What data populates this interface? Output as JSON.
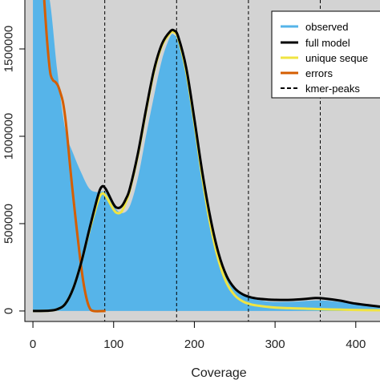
{
  "chart_data": {
    "type": "area",
    "title": "",
    "xlabel": "Coverage",
    "ylabel": "",
    "xlim": [
      -10,
      430
    ],
    "ylim": [
      -60000,
      1780000
    ],
    "x_ticks": [
      0,
      100,
      200,
      300,
      400
    ],
    "x_tick_labels": [
      "0",
      "100",
      "200",
      "300",
      "400"
    ],
    "y_ticks": [
      0,
      500000,
      1000000,
      1500000
    ],
    "y_tick_labels": [
      "0",
      "500000",
      "1000000",
      "1500000"
    ],
    "grid": false,
    "background_color": "#d3d3d3",
    "kmer_peaks": [
      89,
      178,
      267,
      356
    ],
    "legend": {
      "position": "top-right",
      "entries": [
        {
          "label": "observed",
          "color": "#56b4e9",
          "style": "area"
        },
        {
          "label": "full model",
          "color": "#000000",
          "style": "line"
        },
        {
          "label": "unique seque",
          "color": "#f0e442",
          "style": "line"
        },
        {
          "label": "errors",
          "color": "#d55e00",
          "style": "line"
        },
        {
          "label": "kmer-peaks",
          "color": "#000000",
          "style": "dashed"
        }
      ]
    },
    "series": [
      {
        "name": "observed",
        "color": "#56b4e9",
        "style": "area",
        "x": [
          0,
          10,
          20,
          30,
          40,
          50,
          60,
          70,
          80,
          90,
          100,
          110,
          120,
          130,
          140,
          150,
          160,
          170,
          175,
          180,
          190,
          200,
          210,
          220,
          230,
          240,
          250,
          260,
          270,
          280,
          290,
          300,
          320,
          340,
          360,
          380,
          400,
          430
        ],
        "values": [
          1800000,
          1800000,
          1800000,
          1380000,
          1040000,
          900000,
          790000,
          700000,
          680000,
          680000,
          600000,
          560000,
          600000,
          760000,
          1000000,
          1230000,
          1440000,
          1570000,
          1580000,
          1540000,
          1360000,
          1080000,
          780000,
          520000,
          330000,
          200000,
          130000,
          95000,
          75000,
          62000,
          55000,
          52000,
          53000,
          58000,
          60000,
          52000,
          40000,
          32000
        ]
      },
      {
        "name": "full model",
        "color": "#000000",
        "style": "line",
        "x": [
          0,
          20,
          30,
          40,
          50,
          60,
          70,
          80,
          85,
          90,
          100,
          105,
          110,
          115,
          120,
          130,
          140,
          150,
          160,
          170,
          175,
          180,
          190,
          200,
          210,
          220,
          230,
          240,
          250,
          260,
          270,
          280,
          290,
          300,
          320,
          340,
          350,
          360,
          380,
          400,
          430
        ],
        "values": [
          0,
          2000,
          10000,
          40000,
          130000,
          280000,
          470000,
          650000,
          710000,
          700000,
          610000,
          590000,
          600000,
          640000,
          700000,
          900000,
          1150000,
          1380000,
          1530000,
          1600000,
          1605000,
          1570000,
          1390000,
          1100000,
          790000,
          530000,
          330000,
          200000,
          130000,
          95000,
          78000,
          70000,
          66000,
          64000,
          64000,
          70000,
          74000,
          72000,
          60000,
          42000,
          25000
        ]
      },
      {
        "name": "unique sequence",
        "color": "#f0e442",
        "style": "line",
        "x": [
          0,
          20,
          30,
          40,
          50,
          60,
          70,
          80,
          85,
          90,
          100,
          105,
          110,
          115,
          120,
          130,
          140,
          150,
          160,
          170,
          175,
          180,
          190,
          200,
          210,
          220,
          230,
          240,
          250,
          260,
          270,
          280,
          290,
          300,
          320,
          340,
          360,
          380,
          400,
          430
        ],
        "values": [
          0,
          2000,
          10000,
          40000,
          130000,
          280000,
          460000,
          620000,
          670000,
          660000,
          580000,
          560000,
          570000,
          620000,
          690000,
          890000,
          1140000,
          1370000,
          1520000,
          1590000,
          1595000,
          1560000,
          1370000,
          1080000,
          760000,
          490000,
          290000,
          160000,
          90000,
          55000,
          38000,
          30000,
          24000,
          20000,
          16000,
          13000,
          10000,
          8000,
          6000,
          4000
        ]
      },
      {
        "name": "errors",
        "color": "#d55e00",
        "style": "line",
        "x": [
          14,
          17,
          20,
          22,
          25,
          28,
          31,
          34,
          37,
          40,
          43,
          46,
          50,
          54,
          58,
          62,
          66,
          70,
          75,
          90
        ],
        "values": [
          1780000,
          1580000,
          1420000,
          1350000,
          1320000,
          1310000,
          1290000,
          1250000,
          1200000,
          1110000,
          980000,
          830000,
          650000,
          480000,
          320000,
          180000,
          80000,
          20000,
          0,
          0
        ]
      }
    ]
  }
}
